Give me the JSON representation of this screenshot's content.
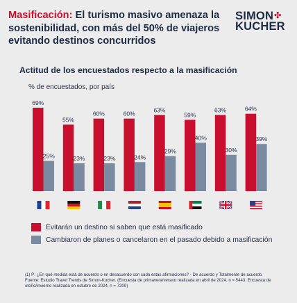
{
  "header": {
    "title_accent": "Masificación:",
    "title_rest": " El turismo masivo amenaza la sostenibilidad, con más del 50% de viajeros evitando destinos concurridos"
  },
  "logo": {
    "line1": "SIMON",
    "line2": "KUCHER",
    "mark": "✣"
  },
  "colors": {
    "red": "#c8102e",
    "slate": "#7a8aa0",
    "navy": "#1f2a44",
    "background": "#ececec"
  },
  "chart_data": {
    "type": "bar",
    "title": "Actitud de los encuestados respecto a la masificación",
    "ylabel": "% de encuestados, por país",
    "categories": [
      "France",
      "Germany",
      "Italy",
      "Netherlands",
      "Spain",
      "UAE",
      "United Kingdom",
      "United States"
    ],
    "category_icons": [
      "flag-france",
      "flag-germany",
      "flag-italy",
      "flag-netherlands",
      "flag-spain",
      "flag-uae",
      "flag-uk",
      "flag-usa"
    ],
    "series": [
      {
        "name": "Evitarán un destino si saben que está masificado",
        "values": [
          69,
          55,
          60,
          60,
          63,
          59,
          63,
          64
        ],
        "labels": [
          "69%",
          "55%",
          "60%",
          "60%",
          "63%",
          "59%",
          "63%",
          "64%"
        ]
      },
      {
        "name": "Cambiaron de planes o cancelaron en el pasado debido a masificación",
        "values": [
          25,
          23,
          23,
          24,
          29,
          40,
          30,
          39
        ],
        "labels": [
          "25%",
          "23%",
          "23%",
          "24%",
          "29%",
          "40%",
          "30%",
          "39%"
        ]
      }
    ],
    "ylim": [
      0,
      69
    ],
    "grid": false,
    "legend": "bottom"
  },
  "footnote": {
    "line1": "(1) P: ¿En qué medida está de acuerdo o en desacuerdo con cada estas afirmaciones? - De acuerdo y Totalmente de acuerdo",
    "line2": "Fuente: Estudio Travel Trends de Simon-Kucher. (Encuesta de primavera/verano realizada en abril de 2024, n = 5443. Encuesta de otoño/invierno realizada en octubre de 2024, n = 7209)"
  }
}
